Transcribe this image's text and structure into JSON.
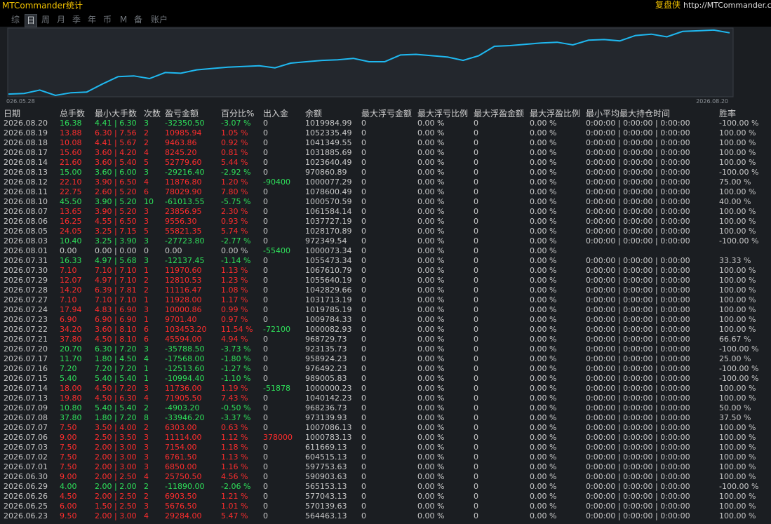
{
  "header": {
    "title": "MTCommander统计",
    "brand": "复盘侠",
    "url": "http://MTCommander.com"
  },
  "tabs": {
    "items": [
      "综",
      "日",
      "周",
      "月",
      "季",
      "年",
      "币",
      "M",
      "备",
      "账户"
    ],
    "active": 1
  },
  "chart_data": {
    "type": "line",
    "color": "#1fb8f0",
    "x_start_label": "026.05.28",
    "x_end_label": "2026.08.20",
    "ylim": [
      0,
      100
    ],
    "values": [
      3,
      4,
      9,
      1,
      5,
      6,
      18,
      29,
      30,
      26,
      35,
      34,
      39,
      41,
      43,
      44,
      45,
      42,
      49,
      51,
      53,
      54,
      56,
      51,
      51,
      61,
      62,
      60,
      58,
      53,
      60,
      74,
      75,
      77,
      79,
      80,
      76,
      83,
      84,
      82,
      90,
      92,
      88,
      96,
      97,
      98,
      94
    ]
  },
  "colors": {
    "profit": "#ff2d2d",
    "loss": "#2ee05a",
    "neutral": "#c8c8c8"
  },
  "table": {
    "columns": [
      "日期",
      "总手数",
      "最小大手数",
      "次数",
      "盈亏金额",
      "百分比%",
      "出入金",
      "余额",
      "最大浮亏金额",
      "最大浮亏比例",
      "最大浮盈金额",
      "最大浮盈比例",
      "最小平均最大持仓时间",
      "胜率"
    ],
    "rows": [
      [
        "2026.08.20",
        "16.38",
        "4.41 | 6.30",
        "3",
        "-32350.50",
        "-3.07 %",
        "0",
        "1019984.99",
        "0",
        "0.00 %",
        "0",
        "0.00 %",
        "0:00:00 | 0:00:00 | 0:00:00",
        "-100.00 %"
      ],
      [
        "2026.08.19",
        "13.88",
        "6.30 | 7.56",
        "2",
        "10985.94",
        "1.05 %",
        "0",
        "1052335.49",
        "0",
        "0.00 %",
        "0",
        "0.00 %",
        "0:00:00 | 0:00:00 | 0:00:00",
        "100.00 %"
      ],
      [
        "2026.08.18",
        "10.08",
        "4.41 | 5.67",
        "2",
        "9463.86",
        "0.92 %",
        "0",
        "1041349.55",
        "0",
        "0.00 %",
        "0",
        "0.00 %",
        "0:00:00 | 0:00:00 | 0:00:00",
        "100.00 %"
      ],
      [
        "2026.08.17",
        "15.60",
        "3.60 | 4.20",
        "4",
        "8245.20",
        "0.81 %",
        "0",
        "1031885.69",
        "0",
        "0.00 %",
        "0",
        "0.00 %",
        "0:00:00 | 0:00:00 | 0:00:00",
        "100.00 %"
      ],
      [
        "2026.08.14",
        "21.60",
        "3.60 | 5.40",
        "5",
        "52779.60",
        "5.44 %",
        "0",
        "1023640.49",
        "0",
        "0.00 %",
        "0",
        "0.00 %",
        "0:00:00 | 0:00:00 | 0:00:00",
        "100.00 %"
      ],
      [
        "2026.08.13",
        "15.00",
        "3.60 | 6.00",
        "3",
        "-29216.40",
        "-2.92 %",
        "0",
        "970860.89",
        "0",
        "0.00 %",
        "0",
        "0.00 %",
        "0:00:00 | 0:00:00 | 0:00:00",
        "-100.00 %"
      ],
      [
        "2026.08.12",
        "22.10",
        "3.90 | 6.50",
        "4",
        "11876.80",
        "1.20 %",
        "-90400",
        "1000077.29",
        "0",
        "0.00 %",
        "0",
        "0.00 %",
        "0:00:00 | 0:00:00 | 0:00:00",
        "75.00 %"
      ],
      [
        "2026.08.11",
        "22.75",
        "2.60 | 5.20",
        "6",
        "78029.90",
        "7.80 %",
        "0",
        "1078600.49",
        "0",
        "0.00 %",
        "0",
        "0.00 %",
        "0:00:00 | 0:00:00 | 0:00:00",
        "100.00 %"
      ],
      [
        "2026.08.10",
        "45.50",
        "3.90 | 5.20",
        "10",
        "-61013.55",
        "-5.75 %",
        "0",
        "1000570.59",
        "0",
        "0.00 %",
        "0",
        "0.00 %",
        "0:00:00 | 0:00:00 | 0:00:00",
        "40.00 %"
      ],
      [
        "2026.08.07",
        "13.65",
        "3.90 | 5.20",
        "3",
        "23856.95",
        "2.30 %",
        "0",
        "1061584.14",
        "0",
        "0.00 %",
        "0",
        "0.00 %",
        "0:00:00 | 0:00:00 | 0:00:00",
        "100.00 %"
      ],
      [
        "2026.08.06",
        "16.25",
        "4.55 | 6.50",
        "3",
        "9556.30",
        "0.93 %",
        "0",
        "1037727.19",
        "0",
        "0.00 %",
        "0",
        "0.00 %",
        "0:00:00 | 0:00:00 | 0:00:00",
        "100.00 %"
      ],
      [
        "2026.08.05",
        "24.05",
        "3.25 | 7.15",
        "5",
        "55821.35",
        "5.74 %",
        "0",
        "1028170.89",
        "0",
        "0.00 %",
        "0",
        "0.00 %",
        "0:00:00 | 0:00:00 | 0:00:00",
        "100.00 %"
      ],
      [
        "2026.08.03",
        "10.40",
        "3.25 | 3.90",
        "3",
        "-27723.80",
        "-2.77 %",
        "0",
        "972349.54",
        "0",
        "0.00 %",
        "0",
        "0.00 %",
        "0:00:00 | 0:00:00 | 0:00:00",
        "-100.00 %"
      ],
      [
        "2026.08.01",
        "0.00",
        "0.00 | 0.00",
        "0",
        "0.00",
        "0.00 %",
        "-55400",
        "1000073.34",
        "0",
        "0.00 %",
        "0",
        "0.00 %"
      ],
      [
        "2026.07.31",
        "16.33",
        "4.97 | 5.68",
        "3",
        "-12137.45",
        "-1.14 %",
        "0",
        "1055473.34",
        "0",
        "0.00 %",
        "0",
        "0.00 %",
        "0:00:00 | 0:00:00 | 0:00:00",
        "33.33 %"
      ],
      [
        "2026.07.30",
        "7.10",
        "7.10 | 7.10",
        "1",
        "11970.60",
        "1.13 %",
        "0",
        "1067610.79",
        "0",
        "0.00 %",
        "0",
        "0.00 %",
        "0:00:00 | 0:00:00 | 0:00:00",
        "100.00 %"
      ],
      [
        "2026.07.29",
        "12.07",
        "4.97 | 7.10",
        "2",
        "12810.53",
        "1.23 %",
        "0",
        "1055640.19",
        "0",
        "0.00 %",
        "0",
        "0.00 %",
        "0:00:00 | 0:00:00 | 0:00:00",
        "100.00 %"
      ],
      [
        "2026.07.28",
        "14.20",
        "6.39 | 7.81",
        "2",
        "11116.47",
        "1.08 %",
        "0",
        "1042829.66",
        "0",
        "0.00 %",
        "0",
        "0.00 %",
        "0:00:00 | 0:00:00 | 0:00:00",
        "100.00 %"
      ],
      [
        "2026.07.27",
        "7.10",
        "7.10 | 7.10",
        "1",
        "11928.00",
        "1.17 %",
        "0",
        "1031713.19",
        "0",
        "0.00 %",
        "0",
        "0.00 %",
        "0:00:00 | 0:00:00 | 0:00:00",
        "100.00 %"
      ],
      [
        "2026.07.24",
        "17.94",
        "4.83 | 6.90",
        "3",
        "10000.86",
        "0.99 %",
        "0",
        "1019785.19",
        "0",
        "0.00 %",
        "0",
        "0.00 %",
        "0:00:00 | 0:00:00 | 0:00:00",
        "100.00 %"
      ],
      [
        "2026.07.23",
        "6.90",
        "6.90 | 6.90",
        "1",
        "9701.40",
        "0.97 %",
        "0",
        "1009784.33",
        "0",
        "0.00 %",
        "0",
        "0.00 %",
        "0:00:00 | 0:00:00 | 0:00:00",
        "100.00 %"
      ],
      [
        "2026.07.22",
        "34.20",
        "3.60 | 8.10",
        "6",
        "103453.20",
        "11.54 %",
        "-72100",
        "1000082.93",
        "0",
        "0.00 %",
        "0",
        "0.00 %",
        "0:00:00 | 0:00:00 | 0:00:00",
        "100.00 %"
      ],
      [
        "2026.07.21",
        "37.80",
        "4.50 | 8.10",
        "6",
        "45594.00",
        "4.94 %",
        "0",
        "968729.73",
        "0",
        "0.00 %",
        "0",
        "0.00 %",
        "0:00:00 | 0:00:00 | 0:00:00",
        "66.67 %"
      ],
      [
        "2026.07.20",
        "20.70",
        "6.30 | 7.20",
        "3",
        "-35788.50",
        "-3.73 %",
        "0",
        "923135.73",
        "0",
        "0.00 %",
        "0",
        "0.00 %",
        "0:00:00 | 0:00:00 | 0:00:00",
        "-100.00 %"
      ],
      [
        "2026.07.17",
        "11.70",
        "1.80 | 4.50",
        "4",
        "-17568.00",
        "-1.80 %",
        "0",
        "958924.23",
        "0",
        "0.00 %",
        "0",
        "0.00 %",
        "0:00:00 | 0:00:00 | 0:00:00",
        "25.00 %"
      ],
      [
        "2026.07.16",
        "7.20",
        "7.20 | 7.20",
        "1",
        "-12513.60",
        "-1.27 %",
        "0",
        "976492.23",
        "0",
        "0.00 %",
        "0",
        "0.00 %",
        "0:00:00 | 0:00:00 | 0:00:00",
        "-100.00 %"
      ],
      [
        "2026.07.15",
        "5.40",
        "5.40 | 5.40",
        "1",
        "-10994.40",
        "-1.10 %",
        "0",
        "989005.83",
        "0",
        "0.00 %",
        "0",
        "0.00 %",
        "0:00:00 | 0:00:00 | 0:00:00",
        "-100.00 %"
      ],
      [
        "2026.07.14",
        "18.00",
        "4.50 | 7.20",
        "3",
        "11736.00",
        "1.19 %",
        "-51878",
        "1000000.23",
        "0",
        "0.00 %",
        "0",
        "0.00 %",
        "0:00:00 | 0:00:00 | 0:00:00",
        "100.00 %"
      ],
      [
        "2026.07.13",
        "19.80",
        "4.50 | 6.30",
        "4",
        "71905.50",
        "7.43 %",
        "0",
        "1040142.23",
        "0",
        "0.00 %",
        "0",
        "0.00 %",
        "0:00:00 | 0:00:00 | 0:00:00",
        "100.00 %"
      ],
      [
        "2026.07.09",
        "10.80",
        "5.40 | 5.40",
        "2",
        "-4903.20",
        "-0.50 %",
        "0",
        "968236.73",
        "0",
        "0.00 %",
        "0",
        "0.00 %",
        "0:00:00 | 0:00:00 | 0:00:00",
        "50.00 %"
      ],
      [
        "2026.07.08",
        "37.80",
        "1.80 | 7.20",
        "8",
        "-33946.20",
        "-3.37 %",
        "0",
        "973139.93",
        "0",
        "0.00 %",
        "0",
        "0.00 %",
        "0:00:00 | 0:00:00 | 0:00:00",
        "37.50 %"
      ],
      [
        "2026.07.07",
        "7.50",
        "3.50 | 4.00",
        "2",
        "6303.00",
        "0.63 %",
        "0",
        "1007086.13",
        "0",
        "0.00 %",
        "0",
        "0.00 %",
        "0:00:00 | 0:00:00 | 0:00:00",
        "100.00 %"
      ],
      [
        "2026.07.06",
        "9.00",
        "2.50 | 3.50",
        "3",
        "11114.00",
        "1.12 %",
        "378000",
        "1000783.13",
        "0",
        "0.00 %",
        "0",
        "0.00 %",
        "0:00:00 | 0:00:00 | 0:00:00",
        "100.00 %"
      ],
      [
        "2026.07.03",
        "7.50",
        "2.00 | 3.00",
        "3",
        "7154.00",
        "1.18 %",
        "0",
        "611669.13",
        "0",
        "0.00 %",
        "0",
        "0.00 %",
        "0:00:00 | 0:00:00 | 0:00:00",
        "100.00 %"
      ],
      [
        "2026.07.02",
        "7.50",
        "2.00 | 3.00",
        "3",
        "6761.50",
        "1.13 %",
        "0",
        "604515.13",
        "0",
        "0.00 %",
        "0",
        "0.00 %",
        "0:00:00 | 0:00:00 | 0:00:00",
        "100.00 %"
      ],
      [
        "2026.07.01",
        "7.50",
        "2.00 | 3.00",
        "3",
        "6850.00",
        "1.16 %",
        "0",
        "597753.63",
        "0",
        "0.00 %",
        "0",
        "0.00 %",
        "0:00:00 | 0:00:00 | 0:00:00",
        "100.00 %"
      ],
      [
        "2026.06.30",
        "9.00",
        "2.00 | 2.50",
        "4",
        "25750.50",
        "4.56 %",
        "0",
        "590903.63",
        "0",
        "0.00 %",
        "0",
        "0.00 %",
        "0:00:00 | 0:00:00 | 0:00:00",
        "100.00 %"
      ],
      [
        "2026.06.29",
        "4.00",
        "2.00 | 2.00",
        "2",
        "-11890.00",
        "-2.06 %",
        "0",
        "565153.13",
        "0",
        "0.00 %",
        "0",
        "0.00 %",
        "0:00:00 | 0:00:00 | 0:00:00",
        "-100.00 %"
      ],
      [
        "2026.06.26",
        "4.50",
        "2.00 | 2.50",
        "2",
        "6903.50",
        "1.21 %",
        "0",
        "577043.13",
        "0",
        "0.00 %",
        "0",
        "0.00 %",
        "0:00:00 | 0:00:00 | 0:00:00",
        "100.00 %"
      ],
      [
        "2026.06.25",
        "6.00",
        "1.50 | 2.50",
        "3",
        "5676.50",
        "1.01 %",
        "0",
        "570139.63",
        "0",
        "0.00 %",
        "0",
        "0.00 %",
        "0:00:00 | 0:00:00 | 0:00:00",
        "100.00 %"
      ],
      [
        "2026.06.23",
        "9.50",
        "2.00 | 3.00",
        "4",
        "29284.00",
        "5.47 %",
        "0",
        "564463.13",
        "0",
        "0.00 %",
        "0",
        "0.00 %",
        "0:00:00 | 0:00:00 | 0:00:00",
        "100.00 %"
      ]
    ]
  }
}
